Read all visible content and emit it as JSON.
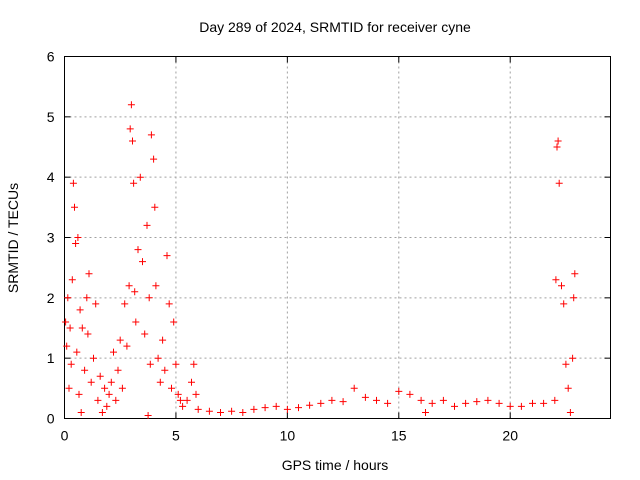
{
  "chart_data": {
    "type": "scatter",
    "title": "Day 289 of 2024, SRMTID for receiver cyne",
    "xlabel": "GPS time / hours",
    "ylabel": "SRMTID / TECUs",
    "xlim": [
      0,
      24.5
    ],
    "ylim": [
      0,
      6
    ],
    "xticks": [
      0,
      5,
      10,
      15,
      20
    ],
    "yticks": [
      0,
      1,
      2,
      3,
      4,
      5,
      6
    ],
    "grid": true,
    "marker": "plus",
    "color": "#ff0000",
    "series": [
      {
        "name": "SRMTID",
        "points": [
          [
            0.05,
            1.6
          ],
          [
            0.1,
            1.2
          ],
          [
            0.15,
            2.0
          ],
          [
            0.2,
            0.5
          ],
          [
            0.25,
            1.5
          ],
          [
            0.3,
            0.9
          ],
          [
            0.35,
            2.3
          ],
          [
            0.4,
            3.9
          ],
          [
            0.45,
            3.5
          ],
          [
            0.5,
            2.9
          ],
          [
            0.55,
            1.1
          ],
          [
            0.6,
            3.0
          ],
          [
            0.65,
            0.4
          ],
          [
            0.7,
            1.8
          ],
          [
            0.75,
            0.1
          ],
          [
            0.8,
            1.5
          ],
          [
            0.9,
            0.8
          ],
          [
            1.0,
            2.0
          ],
          [
            1.05,
            1.4
          ],
          [
            1.1,
            2.4
          ],
          [
            1.2,
            0.6
          ],
          [
            1.3,
            1.0
          ],
          [
            1.4,
            1.9
          ],
          [
            1.5,
            0.3
          ],
          [
            1.6,
            0.7
          ],
          [
            1.7,
            0.1
          ],
          [
            1.8,
            0.5
          ],
          [
            1.9,
            0.2
          ],
          [
            2.0,
            0.4
          ],
          [
            2.1,
            0.6
          ],
          [
            2.2,
            1.1
          ],
          [
            2.3,
            0.3
          ],
          [
            2.4,
            0.8
          ],
          [
            2.5,
            1.3
          ],
          [
            2.6,
            0.5
          ],
          [
            2.7,
            1.9
          ],
          [
            2.8,
            1.2
          ],
          [
            2.9,
            2.2
          ],
          [
            2.95,
            4.8
          ],
          [
            3.0,
            5.2
          ],
          [
            3.05,
            4.6
          ],
          [
            3.1,
            3.9
          ],
          [
            3.15,
            2.1
          ],
          [
            3.2,
            1.6
          ],
          [
            3.3,
            2.8
          ],
          [
            3.4,
            4.0
          ],
          [
            3.5,
            2.6
          ],
          [
            3.6,
            1.4
          ],
          [
            3.7,
            3.2
          ],
          [
            3.75,
            0.05
          ],
          [
            3.8,
            2.0
          ],
          [
            3.85,
            0.9
          ],
          [
            3.9,
            4.7
          ],
          [
            4.0,
            4.3
          ],
          [
            4.05,
            3.5
          ],
          [
            4.1,
            2.2
          ],
          [
            4.2,
            1.0
          ],
          [
            4.3,
            0.6
          ],
          [
            4.4,
            1.3
          ],
          [
            4.5,
            0.8
          ],
          [
            4.6,
            2.7
          ],
          [
            4.7,
            1.9
          ],
          [
            4.8,
            0.5
          ],
          [
            4.9,
            1.6
          ],
          [
            5.0,
            0.9
          ],
          [
            5.1,
            0.4
          ],
          [
            5.2,
            0.3
          ],
          [
            5.3,
            0.2
          ],
          [
            5.5,
            0.3
          ],
          [
            5.7,
            0.6
          ],
          [
            5.8,
            0.9
          ],
          [
            5.9,
            0.4
          ],
          [
            6.0,
            0.15
          ],
          [
            6.5,
            0.12
          ],
          [
            7.0,
            0.1
          ],
          [
            7.5,
            0.12
          ],
          [
            8.0,
            0.1
          ],
          [
            8.5,
            0.15
          ],
          [
            9.0,
            0.18
          ],
          [
            9.5,
            0.2
          ],
          [
            10.0,
            0.15
          ],
          [
            10.5,
            0.18
          ],
          [
            11.0,
            0.22
          ],
          [
            11.5,
            0.25
          ],
          [
            12.0,
            0.3
          ],
          [
            12.5,
            0.28
          ],
          [
            13.0,
            0.5
          ],
          [
            13.5,
            0.35
          ],
          [
            14.0,
            0.3
          ],
          [
            14.5,
            0.25
          ],
          [
            15.0,
            0.45
          ],
          [
            15.5,
            0.4
          ],
          [
            16.0,
            0.3
          ],
          [
            16.2,
            0.1
          ],
          [
            16.5,
            0.25
          ],
          [
            17.0,
            0.3
          ],
          [
            17.5,
            0.2
          ],
          [
            18.0,
            0.25
          ],
          [
            18.5,
            0.28
          ],
          [
            19.0,
            0.3
          ],
          [
            19.5,
            0.25
          ],
          [
            20.0,
            0.2
          ],
          [
            20.5,
            0.2
          ],
          [
            21.0,
            0.25
          ],
          [
            21.5,
            0.25
          ],
          [
            22.0,
            0.3
          ],
          [
            22.05,
            2.3
          ],
          [
            22.1,
            4.5
          ],
          [
            22.15,
            4.6
          ],
          [
            22.2,
            3.9
          ],
          [
            22.3,
            2.2
          ],
          [
            22.4,
            1.9
          ],
          [
            22.5,
            0.9
          ],
          [
            22.6,
            0.5
          ],
          [
            22.7,
            0.1
          ],
          [
            22.8,
            1.0
          ],
          [
            22.85,
            2.0
          ],
          [
            22.9,
            2.4
          ]
        ]
      }
    ]
  }
}
